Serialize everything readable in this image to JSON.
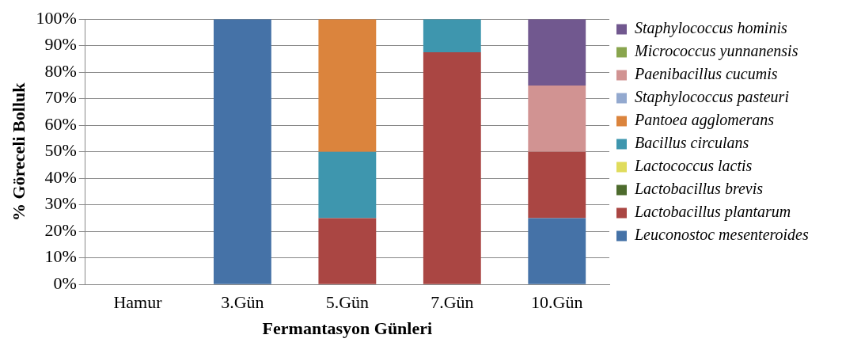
{
  "chart_data": {
    "type": "bar",
    "stacked": true,
    "xlabel": "Fermantasyon Günleri",
    "ylabel": "% Göreceli Bolluk",
    "categories": [
      "Hamur",
      "3.Gün",
      "5.Gün",
      "7.Gün",
      "10.Gün"
    ],
    "series": [
      {
        "name": "Leuconostoc mesenteroides",
        "color": "#4572a7",
        "values": [
          0,
          100,
          0,
          0,
          25
        ]
      },
      {
        "name": "Lactobacillus plantarum",
        "color": "#aa4643",
        "values": [
          0,
          0,
          25,
          87.5,
          25
        ]
      },
      {
        "name": "Lactobacillus brevis",
        "color": "#4d6b2d",
        "values": [
          0,
          0,
          0,
          0,
          0
        ]
      },
      {
        "name": "Lactococcus lactis",
        "color": "#e0dc5c",
        "values": [
          0,
          0,
          0,
          0,
          0
        ]
      },
      {
        "name": "Bacillus circulans",
        "color": "#3e96ae",
        "values": [
          0,
          0,
          25,
          12.5,
          0
        ]
      },
      {
        "name": "Pantoea agglomerans",
        "color": "#db843d",
        "values": [
          0,
          0,
          50,
          0,
          0
        ]
      },
      {
        "name": "Staphylococcus pasteuri",
        "color": "#93a9cf",
        "values": [
          0,
          0,
          0,
          0,
          0
        ]
      },
      {
        "name": "Paenibacillus cucumis",
        "color": "#d19392",
        "values": [
          0,
          0,
          0,
          0,
          25
        ]
      },
      {
        "name": "Micrococcus yunnanensis",
        "color": "#89a54e",
        "values": [
          0,
          0,
          0,
          0,
          0
        ]
      },
      {
        "name": "Staphylococcus hominis",
        "color": "#71588f",
        "values": [
          0,
          0,
          0,
          0,
          25
        ]
      }
    ],
    "ylim": [
      0,
      100
    ],
    "yticks": [
      {
        "value": 0,
        "label": "0%"
      },
      {
        "value": 10,
        "label": "10%"
      },
      {
        "value": 20,
        "label": "20%"
      },
      {
        "value": 30,
        "label": "30%"
      },
      {
        "value": 40,
        "label": "40%"
      },
      {
        "value": 50,
        "label": "50%"
      },
      {
        "value": 60,
        "label": "60%"
      },
      {
        "value": 70,
        "label": "70%"
      },
      {
        "value": 80,
        "label": "80%"
      },
      {
        "value": 90,
        "label": "90%"
      },
      {
        "value": 100,
        "label": "100%"
      }
    ],
    "grid": "y",
    "legend": "right"
  }
}
